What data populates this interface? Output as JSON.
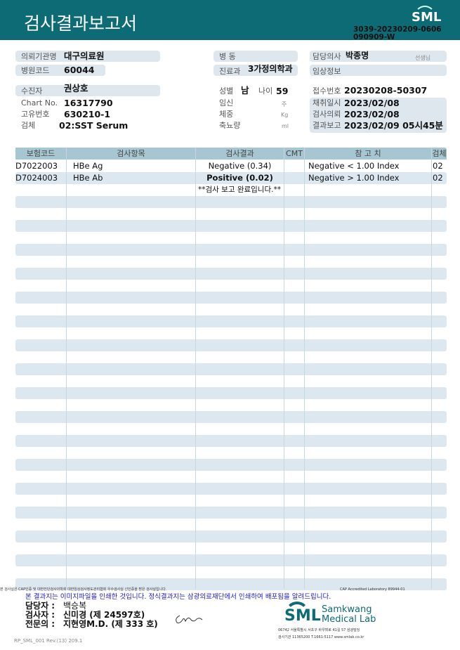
{
  "header": {
    "title": "검사결과보고서",
    "logo": "SML",
    "report_no_1": "3039-20230209-0606",
    "report_no_2": "090909-W"
  },
  "info": {
    "institution_label": "의뢰기관명",
    "institution": "대구의료원",
    "hospital_code_label": "병원코드",
    "hospital_code": "60044",
    "ward_label": "병 동",
    "ward": "",
    "department_label": "진료과",
    "department": "3가정의학과",
    "doctor_label": "담당의사",
    "doctor": "박종명",
    "doctor_suffix": "선생님",
    "clinical_label": "임상정보",
    "clinical": "",
    "patient_label": "수진자",
    "patient": "권상호",
    "chart_label": "Chart No.",
    "chart": "16317790",
    "id_label": "고유번호",
    "id": "630210-1",
    "specimen_label": "검체",
    "specimen": "02:SST Serum",
    "sex_label": "성별",
    "sex": "남",
    "age_label": "나이",
    "age": "59",
    "pregnancy_label": "임신",
    "pregnancy_unit": "주",
    "weight_label": "체중",
    "weight_unit": "Kg",
    "urine_label": "축뇨량",
    "urine_unit": "ml",
    "receipt_label": "접수번호",
    "receipt": "20230208-50307",
    "collected_label": "채취일시",
    "collected": "2023/02/08",
    "requested_label": "검사의뢰",
    "requested": "2023/02/08",
    "reported_label": "결과보고",
    "reported": "2023/02/09 05시45분"
  },
  "table": {
    "headers": [
      "보험코드",
      "검사항목",
      "검사결과",
      "CMT",
      "참 고 치",
      "검체"
    ],
    "rows": [
      {
        "code": "D7022003",
        "item": "HBe Ag",
        "result": "Negative (0.34)",
        "cmt": "",
        "ref": "Negative < 1.00 Index",
        "specimen": "02"
      },
      {
        "code": "D7024003",
        "item": "HBe Ab",
        "result": "Positive (0.02)",
        "cmt": "",
        "ref": "Negative > 1.00 Index",
        "specimen": "02"
      }
    ],
    "end_note": "**검사  보고  완료입니다.**"
  },
  "footer": {
    "cert_note": "본 검사실은 CAP인증 및 대한진단검사의학회 대한임상검사정도관리협회 우수검사실 신인증을 받은 검사실입니다.",
    "cap": "CAP Accredited Laboratory 89944-01",
    "notice": "본 결과지는 이미지파일을 인쇄한 것입니다. 정식결과지는 삼광의료재단에서 인쇄하여 배포됨을 알려드립니다.",
    "manager_label": "담당자 :",
    "manager": "백승복",
    "tester_label": "검사자 :",
    "tester": "신미경 (제 24597호)",
    "specialist_label": "전문의 :",
    "specialist": "지현영M.D. (제 333 호)",
    "lab_name_1": "Samkwang",
    "lab_name_2": "Medical Lab",
    "lab_logo": "SML",
    "address": "06742 서울특별시 서초구 바우뫼로 41길 57 삼광빌딩",
    "contact": "검사기관 11365200 T.1661-5117 www.smlab.co.kr",
    "form_no": "RP_SML_001 Rev.(13) 209.1"
  },
  "colors": {
    "header": "#0d6b75",
    "stripe": "#dde7ef",
    "table_header": "#a6c6d2",
    "notice": "#1a1ad0"
  }
}
